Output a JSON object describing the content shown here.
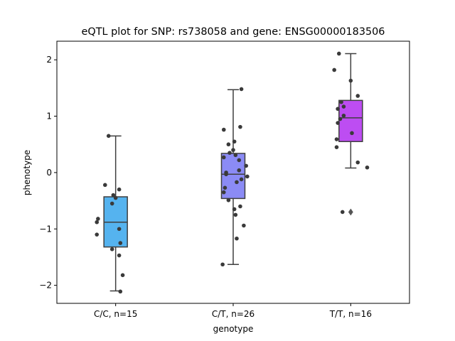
{
  "chart_data": {
    "type": "box",
    "title": "eQTL plot for SNP: rs738058 and gene: ENSG00000183506",
    "xlabel": "genotype",
    "ylabel": "phenotype",
    "ylim": [
      -2.32,
      2.33
    ],
    "yticks": [
      -2,
      -1,
      0,
      1,
      2
    ],
    "ytick_labels": [
      "−2",
      "−1",
      "0",
      "1",
      "2"
    ],
    "categories": [
      "C/C, n=15",
      "C/T, n=26",
      "T/T, n=16"
    ],
    "boxes": [
      {
        "color": "#55b3ef",
        "whisker_low": -2.1,
        "q1": -1.32,
        "median": -0.88,
        "q3": -0.43,
        "whisker_high": 0.65,
        "outliers": []
      },
      {
        "color": "#8b8bf5",
        "whisker_low": -1.63,
        "q1": -0.46,
        "median": -0.03,
        "q3": 0.34,
        "whisker_high": 1.47,
        "outliers": []
      },
      {
        "color": "#bd4df2",
        "whisker_low": 0.08,
        "q1": 0.55,
        "median": 0.97,
        "q3": 1.28,
        "whisker_high": 2.11,
        "outliers": [
          -0.7
        ]
      }
    ],
    "points": [
      [
        {
          "x": -0.06,
          "y": 0.65
        },
        {
          "x": -0.09,
          "y": -0.22
        },
        {
          "x": 0.03,
          "y": -0.3
        },
        {
          "x": -0.02,
          "y": -0.4
        },
        {
          "x": 0.0,
          "y": -0.45
        },
        {
          "x": -0.03,
          "y": -0.55
        },
        {
          "x": -0.15,
          "y": -0.82
        },
        {
          "x": -0.16,
          "y": -0.88
        },
        {
          "x": 0.03,
          "y": -1.0
        },
        {
          "x": -0.16,
          "y": -1.1
        },
        {
          "x": 0.04,
          "y": -1.25
        },
        {
          "x": -0.03,
          "y": -1.36
        },
        {
          "x": 0.03,
          "y": -1.47
        },
        {
          "x": 0.06,
          "y": -1.82
        },
        {
          "x": 0.04,
          "y": -2.11
        }
      ],
      [
        {
          "x": 0.07,
          "y": 1.48
        },
        {
          "x": -0.08,
          "y": 0.76
        },
        {
          "x": 0.06,
          "y": 0.81
        },
        {
          "x": 0.01,
          "y": 0.55
        },
        {
          "x": -0.04,
          "y": 0.5
        },
        {
          "x": 0.0,
          "y": 0.4
        },
        {
          "x": -0.03,
          "y": 0.35
        },
        {
          "x": 0.02,
          "y": 0.31
        },
        {
          "x": -0.08,
          "y": 0.27
        },
        {
          "x": 0.05,
          "y": 0.22
        },
        {
          "x": 0.11,
          "y": 0.12
        },
        {
          "x": 0.05,
          "y": 0.04
        },
        {
          "x": -0.06,
          "y": 0.0
        },
        {
          "x": -0.06,
          "y": -0.03
        },
        {
          "x": 0.12,
          "y": -0.07
        },
        {
          "x": 0.07,
          "y": -0.12
        },
        {
          "x": 0.03,
          "y": -0.17
        },
        {
          "x": -0.07,
          "y": -0.27
        },
        {
          "x": -0.08,
          "y": -0.35
        },
        {
          "x": -0.04,
          "y": -0.49
        },
        {
          "x": 0.06,
          "y": -0.6
        },
        {
          "x": 0.01,
          "y": -0.65
        },
        {
          "x": 0.02,
          "y": -0.75
        },
        {
          "x": 0.09,
          "y": -0.94
        },
        {
          "x": 0.03,
          "y": -1.17
        },
        {
          "x": -0.09,
          "y": -1.63
        }
      ],
      [
        {
          "x": -0.14,
          "y": 1.82
        },
        {
          "x": -0.1,
          "y": 2.11
        },
        {
          "x": 0.0,
          "y": 1.63
        },
        {
          "x": 0.06,
          "y": 1.36
        },
        {
          "x": -0.08,
          "y": 1.25
        },
        {
          "x": -0.06,
          "y": 1.17
        },
        {
          "x": -0.11,
          "y": 1.13
        },
        {
          "x": -0.06,
          "y": 1.01
        },
        {
          "x": -0.09,
          "y": 0.95
        },
        {
          "x": -0.11,
          "y": 0.88
        },
        {
          "x": 0.01,
          "y": 0.7
        },
        {
          "x": -0.12,
          "y": 0.59
        },
        {
          "x": -0.12,
          "y": 0.45
        },
        {
          "x": 0.06,
          "y": 0.18
        },
        {
          "x": 0.14,
          "y": 0.09
        },
        {
          "x": -0.07,
          "y": -0.7
        }
      ]
    ],
    "grid": false,
    "legend": "none"
  }
}
